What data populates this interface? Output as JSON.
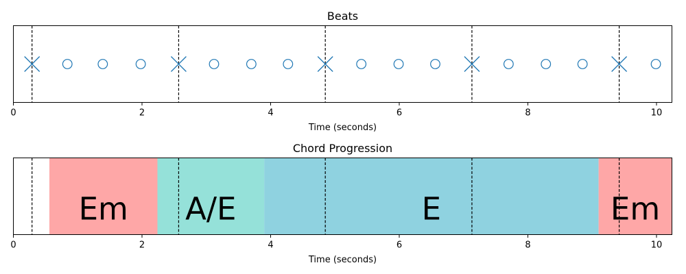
{
  "chart_data": [
    {
      "type": "scatter",
      "title": "Beats",
      "xlabel": "Time (seconds)",
      "ylabel": "",
      "xlim": [
        0,
        10.24
      ],
      "xticks": [
        0,
        2,
        4,
        6,
        8,
        10
      ],
      "marker_color": "#1f77b4",
      "downbeats": [
        0.29,
        2.57,
        4.85,
        7.13,
        9.42
      ],
      "beats": [
        0.84,
        1.39,
        1.98,
        3.12,
        3.7,
        4.27,
        5.41,
        5.99,
        6.56,
        7.7,
        8.28,
        8.85,
        9.99
      ],
      "grid": false
    },
    {
      "type": "timeline",
      "title": "Chord Progression",
      "xlabel": "Time (seconds)",
      "ylabel": "",
      "xlim": [
        0,
        10.24
      ],
      "xticks": [
        0,
        2,
        4,
        6,
        8,
        10
      ],
      "downbeats": [
        0.29,
        2.57,
        4.85,
        7.13,
        9.42
      ],
      "chords": [
        {
          "label": "Em",
          "start": 0.56,
          "end": 2.24,
          "color": "#fea7a7"
        },
        {
          "label": "A/E",
          "start": 2.24,
          "end": 3.9,
          "color": "#95e1d9"
        },
        {
          "label": "E",
          "start": 3.9,
          "end": 9.1,
          "color": "#8fd2e0"
        },
        {
          "label": "Em",
          "start": 9.1,
          "end": 10.24,
          "color": "#fea7a7"
        }
      ],
      "grid": false
    }
  ]
}
